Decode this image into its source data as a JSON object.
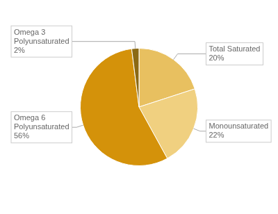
{
  "chart_data": {
    "type": "pie",
    "categories": [
      "Total Saturated",
      "Monounsaturated",
      "Omega 6\nPolyunsaturated",
      "Omega 3\nPolyunsaturated"
    ],
    "values": [
      20,
      22,
      56,
      2
    ],
    "value_labels": [
      "20%",
      "22%",
      "56%",
      "2%"
    ],
    "colors": [
      "#E8C060",
      "#F0D080",
      "#D4920A",
      "#8B6914"
    ],
    "data_labels": true
  }
}
